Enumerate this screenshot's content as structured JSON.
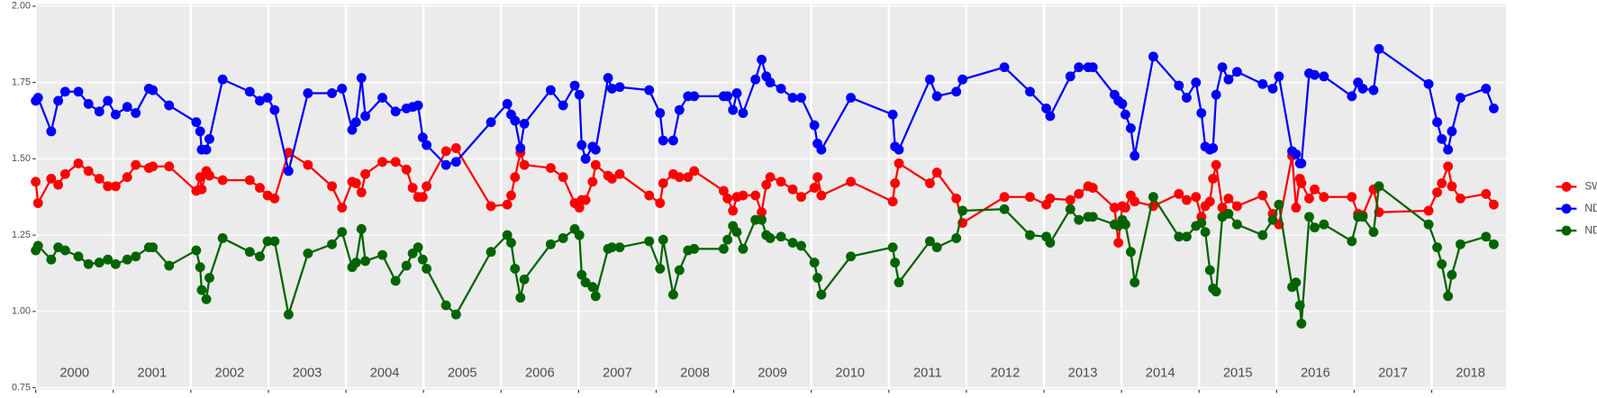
{
  "chart_data": {
    "type": "line",
    "x": [
      2000.0,
      2000.03,
      2000.2,
      2000.29,
      2000.38,
      2000.55,
      2000.68,
      2000.82,
      2000.93,
      2001.03,
      2001.18,
      2001.29,
      2001.46,
      2001.51,
      2001.72,
      2002.07,
      2002.12,
      2002.14,
      2002.2,
      2002.24,
      2002.41,
      2002.76,
      2002.89,
      2002.99,
      2003.08,
      2003.26,
      2003.51,
      2003.82,
      2003.95,
      2004.08,
      2004.13,
      2004.2,
      2004.25,
      2004.47,
      2004.64,
      2004.78,
      2004.86,
      2004.93,
      2004.99,
      2005.04,
      2005.29,
      2005.42,
      2005.87,
      2006.08,
      2006.13,
      2006.18,
      2006.25,
      2006.3,
      2006.64,
      2006.8,
      2006.95,
      2007.01,
      2007.04,
      2007.09,
      2007.18,
      2007.22,
      2007.38,
      2007.43,
      2007.53,
      2007.91,
      2008.05,
      2008.09,
      2008.22,
      2008.3,
      2008.41,
      2008.49,
      2008.87,
      2008.92,
      2008.99,
      2009.04,
      2009.12,
      2009.28,
      2009.36,
      2009.42,
      2009.47,
      2009.61,
      2009.76,
      2009.87,
      2010.04,
      2010.08,
      2010.13,
      2010.51,
      2011.05,
      2011.08,
      2011.13,
      2011.53,
      2011.62,
      2011.87,
      2011.95,
      2012.49,
      2012.82,
      2013.03,
      2013.08,
      2013.34,
      2013.45,
      2013.57,
      2013.63,
      2013.91,
      2013.96,
      2014.01,
      2014.05,
      2014.12,
      2014.17,
      2014.41,
      2014.74,
      2014.84,
      2014.96,
      2015.03,
      2015.08,
      2015.14,
      2015.18,
      2015.22,
      2015.3,
      2015.38,
      2015.49,
      2015.82,
      2015.95,
      2016.03,
      2016.2,
      2016.25,
      2016.3,
      2016.32,
      2016.42,
      2016.49,
      2016.61,
      2016.97,
      2017.05,
      2017.11,
      2017.25,
      2017.32,
      2017.96,
      2018.07,
      2018.13,
      2018.21,
      2018.26,
      2018.37,
      2018.7,
      2018.8
    ],
    "series": [
      {
        "name": "SWIR",
        "color": "#ff0000",
        "values": [
          1.425,
          1.355,
          1.435,
          1.415,
          1.45,
          1.485,
          1.46,
          1.435,
          1.41,
          1.41,
          1.44,
          1.48,
          1.47,
          1.475,
          1.475,
          1.395,
          1.44,
          1.4,
          1.46,
          1.445,
          1.43,
          1.43,
          1.405,
          1.38,
          1.37,
          1.52,
          1.48,
          1.41,
          1.34,
          1.425,
          1.42,
          1.39,
          1.45,
          1.49,
          1.49,
          1.465,
          1.405,
          1.375,
          1.375,
          1.41,
          1.525,
          1.535,
          1.345,
          1.35,
          1.38,
          1.44,
          1.52,
          1.48,
          1.47,
          1.44,
          1.355,
          1.34,
          1.365,
          1.365,
          1.425,
          1.48,
          1.445,
          1.435,
          1.45,
          1.38,
          1.355,
          1.42,
          1.45,
          1.44,
          1.44,
          1.46,
          1.395,
          1.37,
          1.33,
          1.375,
          1.38,
          1.38,
          1.325,
          1.415,
          1.44,
          1.425,
          1.4,
          1.375,
          1.405,
          1.44,
          1.38,
          1.425,
          1.36,
          1.42,
          1.485,
          1.42,
          1.455,
          1.37,
          1.29,
          1.375,
          1.375,
          1.35,
          1.37,
          1.365,
          1.385,
          1.41,
          1.405,
          1.34,
          1.225,
          1.345,
          1.34,
          1.38,
          1.36,
          1.345,
          1.385,
          1.365,
          1.375,
          1.31,
          1.345,
          1.36,
          1.435,
          1.48,
          1.34,
          1.37,
          1.345,
          1.38,
          1.32,
          1.285,
          1.51,
          1.34,
          1.435,
          1.42,
          1.37,
          1.4,
          1.375,
          1.375,
          1.32,
          1.315,
          1.4,
          1.325,
          1.33,
          1.39,
          1.42,
          1.475,
          1.41,
          1.37,
          1.385,
          1.35
        ]
      },
      {
        "name": "NDVI",
        "color": "#0000ff",
        "values": [
          1.69,
          1.7,
          1.59,
          1.69,
          1.72,
          1.72,
          1.68,
          1.655,
          1.69,
          1.645,
          1.67,
          1.65,
          1.73,
          1.725,
          1.675,
          1.62,
          1.59,
          1.53,
          1.53,
          1.565,
          1.76,
          1.72,
          1.69,
          1.7,
          1.66,
          1.46,
          1.715,
          1.715,
          1.73,
          1.595,
          1.62,
          1.765,
          1.64,
          1.7,
          1.655,
          1.665,
          1.67,
          1.675,
          1.57,
          1.545,
          1.48,
          1.49,
          1.62,
          1.68,
          1.645,
          1.625,
          1.535,
          1.615,
          1.725,
          1.675,
          1.74,
          1.71,
          1.545,
          1.5,
          1.54,
          1.53,
          1.765,
          1.73,
          1.735,
          1.725,
          1.65,
          1.56,
          1.56,
          1.66,
          1.705,
          1.705,
          1.705,
          1.705,
          1.66,
          1.715,
          1.65,
          1.76,
          1.825,
          1.77,
          1.75,
          1.73,
          1.7,
          1.7,
          1.61,
          1.55,
          1.53,
          1.7,
          1.645,
          1.54,
          1.53,
          1.76,
          1.705,
          1.72,
          1.76,
          1.8,
          1.72,
          1.665,
          1.64,
          1.77,
          1.8,
          1.8,
          1.8,
          1.71,
          1.69,
          1.68,
          1.645,
          1.6,
          1.51,
          1.835,
          1.74,
          1.7,
          1.75,
          1.65,
          1.54,
          1.53,
          1.535,
          1.71,
          1.8,
          1.76,
          1.785,
          1.745,
          1.73,
          1.77,
          1.525,
          1.515,
          1.485,
          1.485,
          1.78,
          1.775,
          1.77,
          1.705,
          1.75,
          1.73,
          1.725,
          1.86,
          1.745,
          1.62,
          1.565,
          1.53,
          1.59,
          1.7,
          1.73,
          1.665
        ]
      },
      {
        "name": "NDWI",
        "color": "#006400",
        "values": [
          1.2,
          1.215,
          1.17,
          1.21,
          1.2,
          1.18,
          1.155,
          1.16,
          1.17,
          1.155,
          1.17,
          1.18,
          1.21,
          1.21,
          1.15,
          1.2,
          1.145,
          1.07,
          1.04,
          1.11,
          1.24,
          1.195,
          1.18,
          1.23,
          1.23,
          0.99,
          1.19,
          1.22,
          1.26,
          1.145,
          1.16,
          1.27,
          1.165,
          1.185,
          1.1,
          1.15,
          1.19,
          1.21,
          1.17,
          1.14,
          1.02,
          0.99,
          1.195,
          1.25,
          1.225,
          1.14,
          1.045,
          1.105,
          1.22,
          1.24,
          1.27,
          1.25,
          1.12,
          1.095,
          1.08,
          1.05,
          1.205,
          1.21,
          1.21,
          1.23,
          1.14,
          1.235,
          1.055,
          1.135,
          1.2,
          1.205,
          1.205,
          1.235,
          1.28,
          1.26,
          1.205,
          1.3,
          1.3,
          1.25,
          1.24,
          1.245,
          1.225,
          1.215,
          1.16,
          1.11,
          1.055,
          1.18,
          1.21,
          1.16,
          1.095,
          1.23,
          1.21,
          1.24,
          1.33,
          1.335,
          1.25,
          1.245,
          1.225,
          1.335,
          1.3,
          1.31,
          1.31,
          1.285,
          1.28,
          1.3,
          1.285,
          1.195,
          1.095,
          1.375,
          1.245,
          1.245,
          1.28,
          1.29,
          1.26,
          1.135,
          1.075,
          1.065,
          1.31,
          1.32,
          1.285,
          1.25,
          1.3,
          1.35,
          1.08,
          1.095,
          1.02,
          0.96,
          1.31,
          1.275,
          1.285,
          1.23,
          1.31,
          1.31,
          1.26,
          1.41,
          1.285,
          1.21,
          1.155,
          1.05,
          1.12,
          1.22,
          1.245,
          1.22
        ]
      }
    ],
    "xlim": [
      2000,
      2018.96
    ],
    "xticks": [
      {
        "value": 2000,
        "label": "2000"
      },
      {
        "value": 2001,
        "label": "2001"
      },
      {
        "value": 2002,
        "label": "2002"
      },
      {
        "value": 2003,
        "label": "2003"
      },
      {
        "value": 2004,
        "label": "2004"
      },
      {
        "value": 2005,
        "label": "2005"
      },
      {
        "value": 2006,
        "label": "2006"
      },
      {
        "value": 2007,
        "label": "2007"
      },
      {
        "value": 2008,
        "label": "2008"
      },
      {
        "value": 2009,
        "label": "2009"
      },
      {
        "value": 2010,
        "label": "2010"
      },
      {
        "value": 2011,
        "label": "2011"
      },
      {
        "value": 2012,
        "label": "2012"
      },
      {
        "value": 2013,
        "label": "2013"
      },
      {
        "value": 2014,
        "label": "2014"
      },
      {
        "value": 2015,
        "label": "2015"
      },
      {
        "value": 2016,
        "label": "2016"
      },
      {
        "value": 2017,
        "label": "2017"
      },
      {
        "value": 2018,
        "label": "2018"
      }
    ],
    "ylim": [
      0.75,
      2.0
    ],
    "yticks": [
      0.75,
      {
        "value": 1,
        "label": "1.00"
      },
      1.25,
      {
        "value": 1.5,
        "label": "1.50"
      },
      1.75,
      {
        "value": 2,
        "label": "2.00"
      }
    ],
    "grid": true,
    "legend": "right"
  }
}
